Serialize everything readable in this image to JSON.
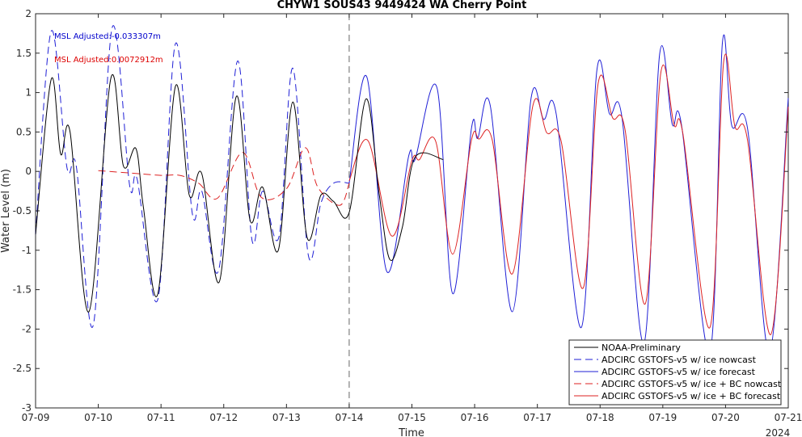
{
  "chart_data": {
    "type": "line",
    "title": "CHYW1 SOUS43 9449424 WA Cherry Point",
    "xlabel": "Time",
    "ylabel": "Water Level (m)",
    "x_start": "2024-07-09",
    "x_end": "2024-07-21",
    "xlim": [
      "2024-07-09",
      "2024-07-21"
    ],
    "ylim": [
      -3,
      2
    ],
    "x_tick_labels": [
      "07-09",
      "07-10",
      "07-11",
      "07-12",
      "07-13",
      "07-14",
      "07-15",
      "07-16",
      "07-17",
      "07-18",
      "07-19",
      "07-20",
      "07-21"
    ],
    "x_year_label": "2024",
    "y_ticks": [
      -3,
      -2.5,
      -2,
      -1.5,
      -1,
      -0.5,
      0,
      0.5,
      1,
      1.5,
      2
    ],
    "y_tick_labels": [
      "-3",
      "-2.5",
      "-2",
      "-1.5",
      "-1",
      "-0.5",
      "0",
      "0.5",
      "1",
      "1.5",
      "2"
    ],
    "forecast_start": "2024-07-14",
    "grid": false,
    "legend_position": "bottom-right",
    "annotations": [
      {
        "text": "MSL Adjusted:-0.033307m",
        "color": "#0000cc"
      },
      {
        "text": "MSL Adjusted:0.0072912m",
        "color": "#dd0000"
      }
    ],
    "series": [
      {
        "name": "NOAA-Preliminary",
        "color": "#000000",
        "dash": "solid",
        "x": [
          9.0,
          9.25,
          9.4,
          9.55,
          9.85,
          10.2,
          10.4,
          10.6,
          10.72,
          10.95,
          11.23,
          11.45,
          11.65,
          11.93,
          12.2,
          12.42,
          12.62,
          12.87,
          13.1,
          13.33,
          13.55,
          13.75,
          14.0,
          14.27,
          14.48,
          14.65,
          14.85,
          15.05,
          15.5
        ],
        "y": [
          -0.8,
          1.17,
          0.22,
          0.5,
          -1.78,
          1.18,
          0.07,
          0.29,
          -0.46,
          -1.55,
          1.08,
          -0.3,
          -0.03,
          -1.4,
          0.95,
          -0.62,
          -0.2,
          -1.0,
          0.88,
          -0.84,
          -0.3,
          -0.38,
          -0.52,
          0.92,
          -0.3,
          -1.12,
          -0.7,
          0.18,
          0.15
        ]
      },
      {
        "name": "ADCIRC GSTOFS-v5 w/ ice nowcast",
        "color": "#1f1fd6",
        "dash": "dashed",
        "x": [
          9.0,
          9.25,
          9.5,
          9.65,
          9.92,
          10.22,
          10.5,
          10.62,
          10.95,
          11.23,
          11.5,
          11.65,
          11.92,
          12.22,
          12.45,
          12.62,
          12.88,
          13.1,
          13.35,
          13.55,
          13.75,
          14.0
        ],
        "y": [
          -0.8,
          1.78,
          0.05,
          0.06,
          -1.95,
          1.82,
          -0.18,
          -0.1,
          -1.62,
          1.62,
          -0.54,
          -0.25,
          -1.25,
          1.4,
          -0.87,
          -0.25,
          -0.83,
          1.31,
          -1.07,
          -0.4,
          -0.15,
          -0.15
        ]
      },
      {
        "name": "ADCIRC GSTOFS-v5 w/ ice forecast",
        "color": "#1f1fd6",
        "dash": "solid",
        "x": [
          14.0,
          14.28,
          14.6,
          14.95,
          15.05,
          15.4,
          15.65,
          15.95,
          16.05,
          16.25,
          16.6,
          16.9,
          17.1,
          17.3,
          17.7,
          17.95,
          18.15,
          18.35,
          18.7,
          18.95,
          19.15,
          19.3,
          19.75,
          19.95,
          20.1,
          20.35,
          20.7,
          21.0
        ],
        "y": [
          -0.15,
          1.2,
          -1.27,
          0.2,
          0.15,
          1.06,
          -1.55,
          0.55,
          0.42,
          0.83,
          -1.78,
          0.93,
          0.66,
          0.73,
          -1.98,
          1.29,
          0.73,
          0.68,
          -2.18,
          1.49,
          0.6,
          0.58,
          -2.3,
          1.63,
          0.58,
          0.55,
          -2.3,
          0.93
        ]
      },
      {
        "name": "ADCIRC GSTOFS-v5 w/ ice + BC nowcast",
        "color": "#dd2222",
        "dash": "dashed",
        "x": [
          10.0,
          10.5,
          11.0,
          11.3,
          11.6,
          11.9,
          12.3,
          12.6,
          13.0,
          13.3,
          13.5,
          13.85,
          14.0
        ],
        "y": [
          0.01,
          -0.02,
          -0.05,
          -0.05,
          -0.15,
          -0.34,
          0.24,
          -0.33,
          -0.22,
          0.3,
          -0.2,
          -0.43,
          -0.15
        ]
      },
      {
        "name": "ADCIRC GSTOFS-v5 w/ ice + BC forecast",
        "color": "#dd2222",
        "dash": "solid",
        "x": [
          14.0,
          14.3,
          14.68,
          15.0,
          15.12,
          15.38,
          15.65,
          15.95,
          16.07,
          16.28,
          16.6,
          16.93,
          17.15,
          17.38,
          17.73,
          17.97,
          18.2,
          18.4,
          18.72,
          18.97,
          19.18,
          19.32,
          19.75,
          19.97,
          20.15,
          20.35,
          20.72,
          21.0
        ],
        "y": [
          -0.12,
          0.39,
          -0.82,
          0.14,
          0.15,
          0.38,
          -1.05,
          0.4,
          0.41,
          0.4,
          -1.3,
          0.84,
          0.49,
          0.38,
          -1.48,
          1.12,
          0.68,
          0.52,
          -1.68,
          1.26,
          0.59,
          0.48,
          -1.98,
          1.39,
          0.57,
          0.4,
          -2.07,
          0.82
        ]
      }
    ]
  }
}
